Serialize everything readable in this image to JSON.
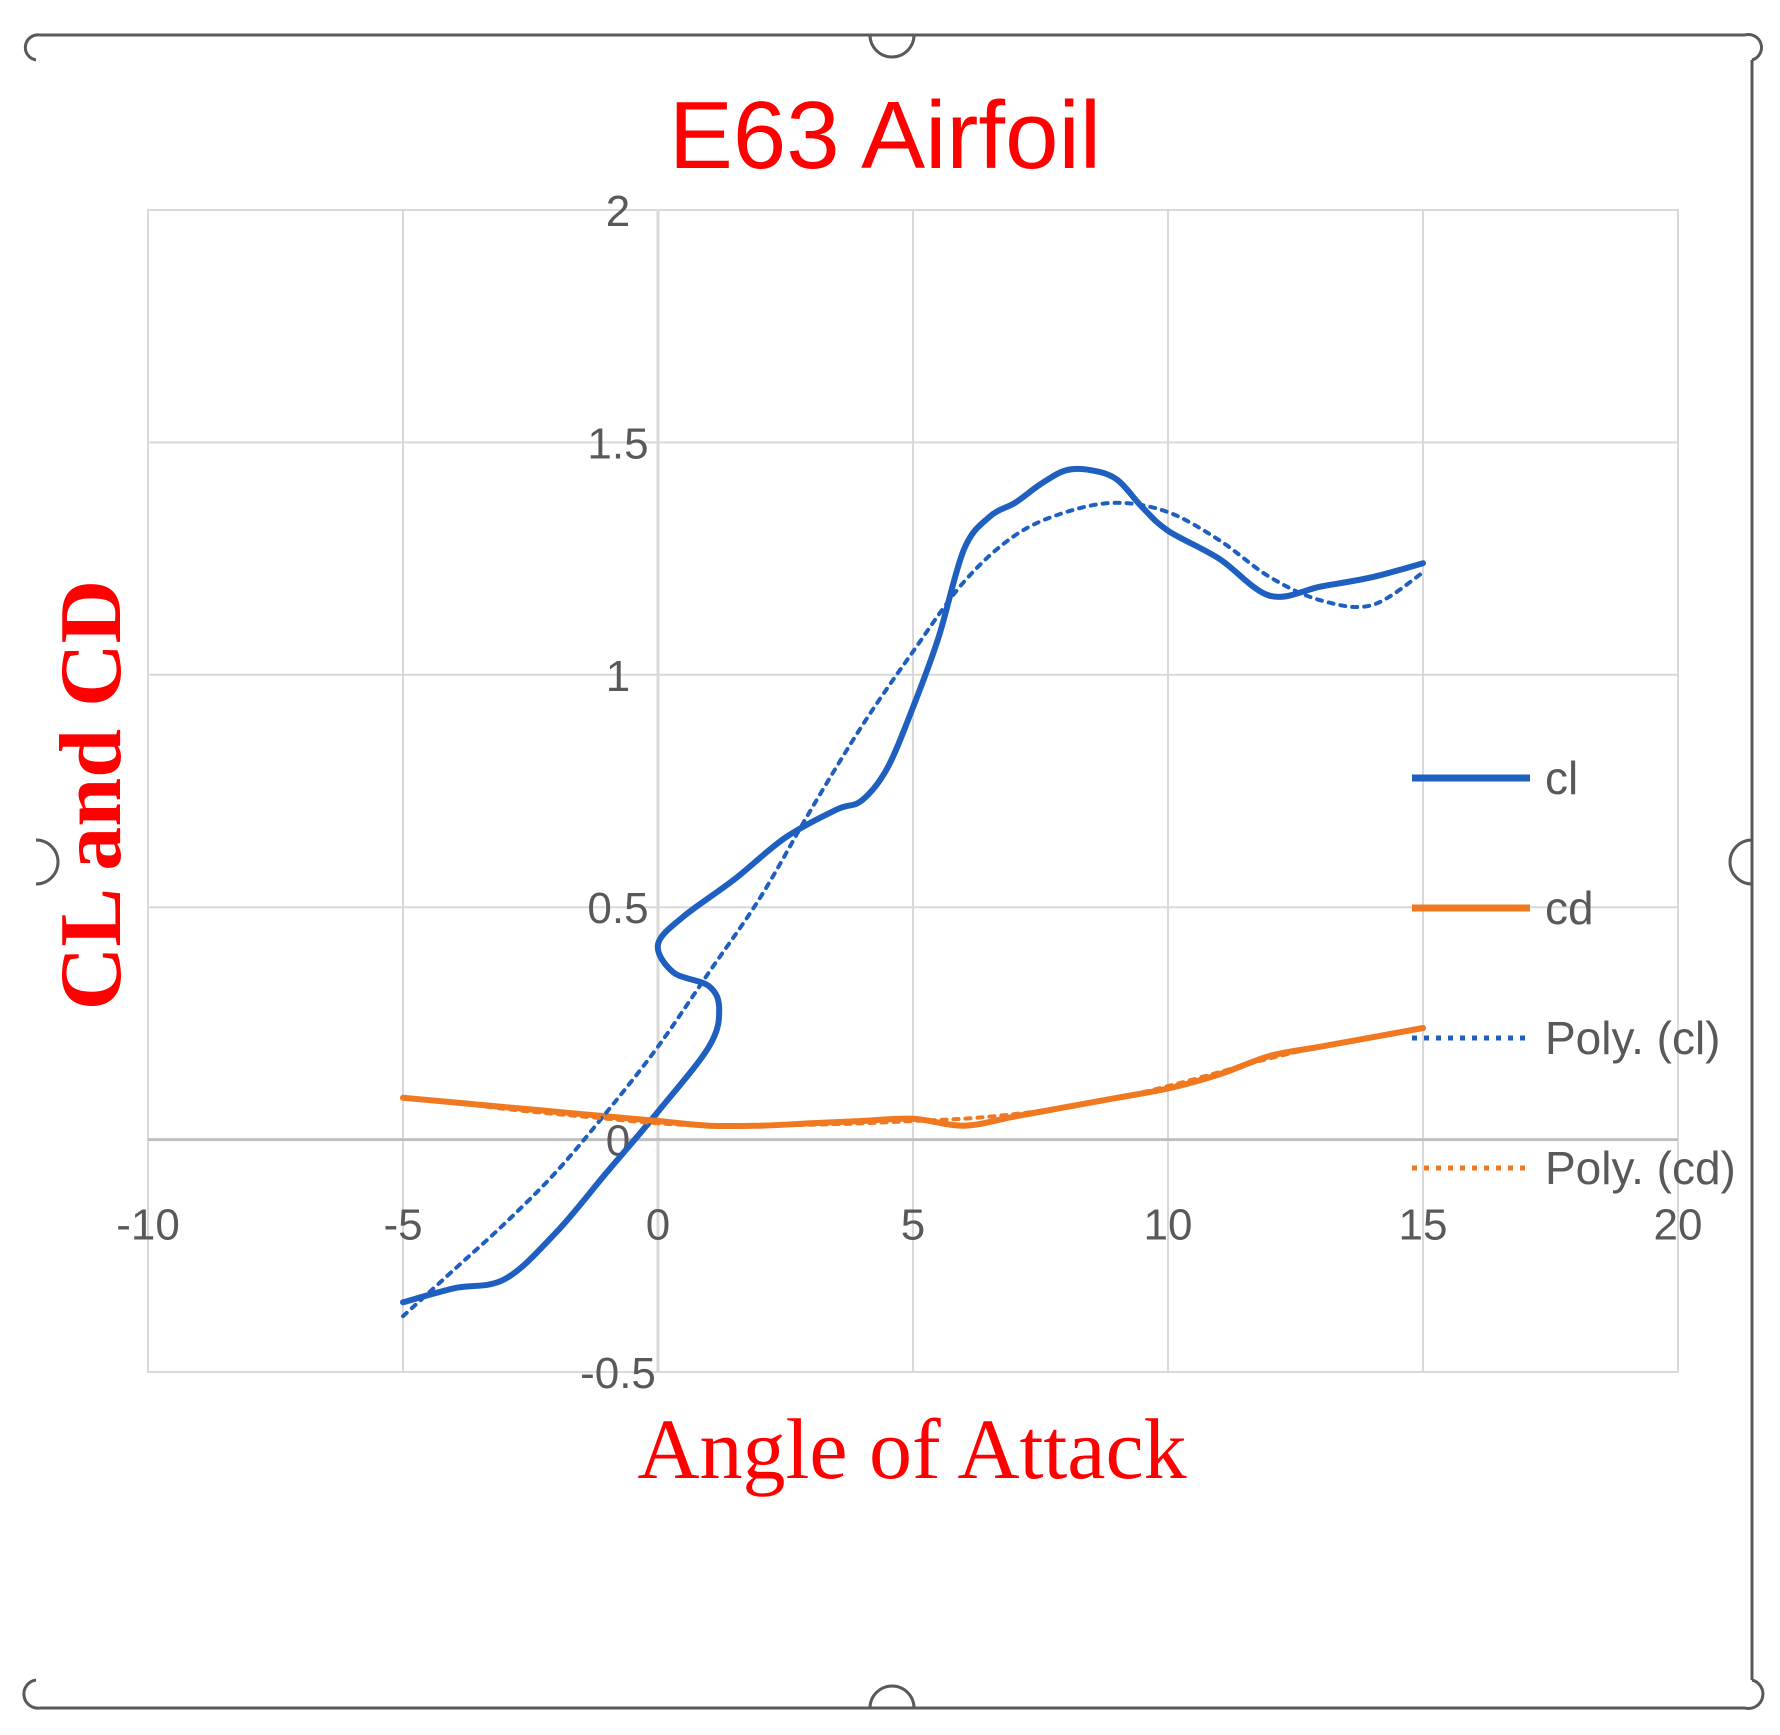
{
  "chart_data": {
    "type": "line",
    "title": "E63 Airfoil",
    "xlabel": "Angle of Attack",
    "ylabel": "CL and CD",
    "xlim": [
      -10,
      20
    ],
    "ylim": [
      -0.5,
      2
    ],
    "x_ticks": [
      "-10",
      "-5",
      "0",
      "5",
      "10",
      "15",
      "20"
    ],
    "y_ticks": [
      "2",
      "1.5",
      "1",
      "0.5",
      "0",
      "-0.5"
    ],
    "grid": true,
    "legend_position": "right",
    "colors": {
      "cl": "#1f5fbf",
      "cd": "#f07820",
      "frame": "#595959",
      "grid": "#d9d9d9"
    },
    "series": [
      {
        "name": "cl",
        "style": "solid",
        "x": [
          -5,
          -4,
          -3,
          -2,
          -1,
          0,
          1,
          1.2,
          1,
          0.3,
          0,
          0.5,
          1.5,
          2.5,
          3.5,
          4,
          4.5,
          5,
          5.5,
          6,
          6.5,
          7,
          7.5,
          8,
          8.5,
          9,
          9.5,
          10,
          11,
          12,
          13,
          14,
          15
        ],
        "y": [
          -0.35,
          -0.32,
          -0.3,
          -0.2,
          -0.07,
          0.06,
          0.2,
          0.28,
          0.33,
          0.36,
          0.42,
          0.48,
          0.56,
          0.65,
          0.71,
          0.73,
          0.8,
          0.93,
          1.08,
          1.27,
          1.34,
          1.37,
          1.41,
          1.44,
          1.44,
          1.42,
          1.36,
          1.31,
          1.25,
          1.17,
          1.19,
          1.21,
          1.24
        ]
      },
      {
        "name": "cd",
        "style": "solid",
        "x": [
          -5,
          -4,
          -3,
          -2,
          -1,
          0,
          1,
          2,
          3,
          4,
          5,
          6,
          7,
          8,
          9,
          10,
          11,
          12,
          13,
          14,
          15
        ],
        "y": [
          0.09,
          0.08,
          0.07,
          0.06,
          0.05,
          0.04,
          0.03,
          0.03,
          0.035,
          0.04,
          0.045,
          0.03,
          0.05,
          0.07,
          0.09,
          0.11,
          0.14,
          0.18,
          0.2,
          0.22,
          0.24
        ]
      },
      {
        "name": "Poly. (cl)",
        "style": "dotted",
        "x": [
          -5,
          -4,
          -3,
          -2,
          -1,
          0,
          1,
          2,
          3,
          4,
          5,
          6,
          7,
          8,
          9,
          10,
          11,
          12,
          13,
          14,
          15
        ],
        "y": [
          -0.38,
          -0.28,
          -0.18,
          -0.07,
          0.06,
          0.2,
          0.36,
          0.52,
          0.71,
          0.89,
          1.05,
          1.2,
          1.3,
          1.35,
          1.37,
          1.35,
          1.29,
          1.21,
          1.16,
          1.15,
          1.22
        ]
      },
      {
        "name": "Poly. (cd)",
        "style": "dotted",
        "x": [
          -5,
          -4,
          -3,
          -2,
          -1,
          0,
          1,
          2,
          3,
          4,
          5,
          6,
          7,
          8,
          9,
          10,
          11,
          12,
          13,
          14,
          15
        ],
        "y": [
          0.09,
          0.08,
          0.066,
          0.055,
          0.045,
          0.035,
          0.03,
          0.03,
          0.032,
          0.035,
          0.04,
          0.045,
          0.055,
          0.07,
          0.09,
          0.115,
          0.145,
          0.175,
          0.2,
          0.22,
          0.24
        ]
      }
    ]
  }
}
